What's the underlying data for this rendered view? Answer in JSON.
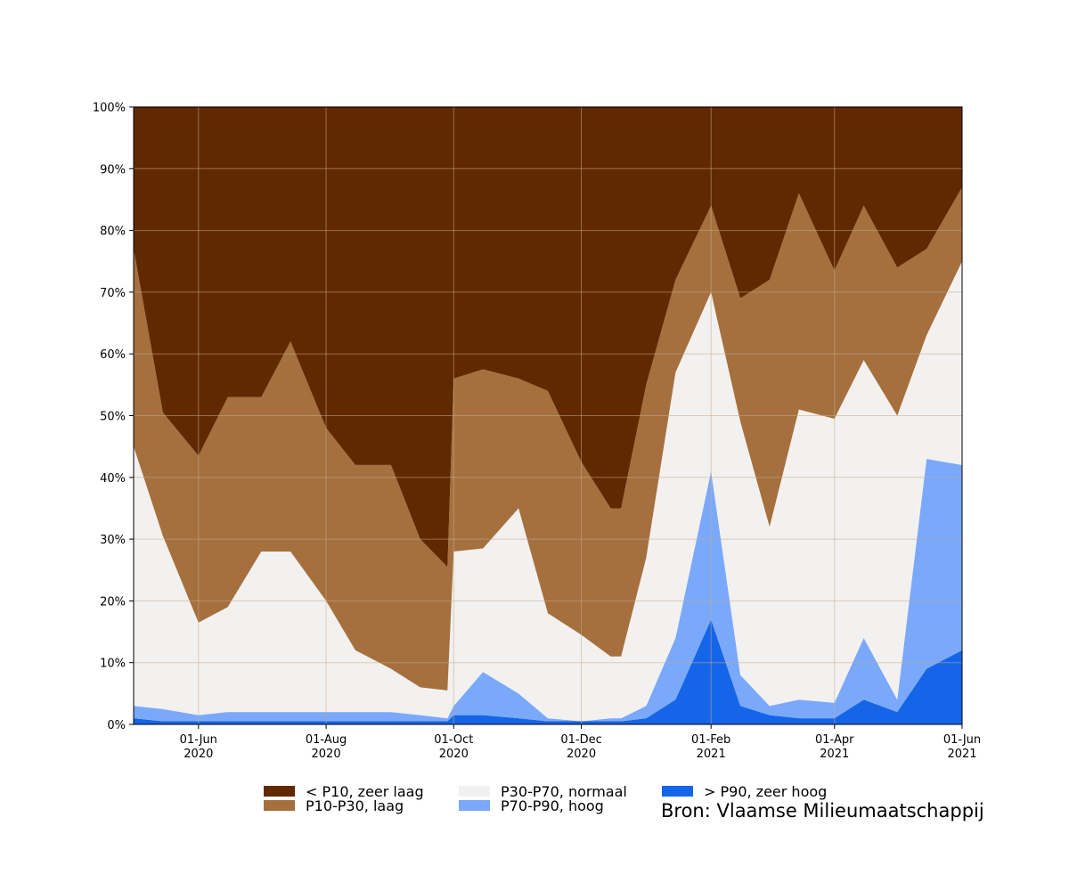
{
  "chart_data": {
    "type": "area",
    "stacked": true,
    "percent_stacked": true,
    "x": [
      "2020-05-01",
      "2020-05-15",
      "2020-06-01",
      "2020-06-15",
      "2020-07-01",
      "2020-07-15",
      "2020-08-01",
      "2020-08-15",
      "2020-09-01",
      "2020-09-15",
      "2020-09-28",
      "2020-10-01",
      "2020-10-15",
      "2020-11-01",
      "2020-11-15",
      "2020-12-01",
      "2020-12-15",
      "2020-12-20",
      "2021-01-01",
      "2021-01-15",
      "2021-02-01",
      "2021-02-15",
      "2021-03-01",
      "2021-03-15",
      "2021-04-01",
      "2021-04-15",
      "2021-05-01",
      "2021-05-15",
      "2021-06-01"
    ],
    "series": [
      {
        "name": "> P90, zeer hoog",
        "color": "#1565e8",
        "values": [
          1,
          0.5,
          0.5,
          0.5,
          0.5,
          0.5,
          0.5,
          0.5,
          0.5,
          0.5,
          0.5,
          1.5,
          1.5,
          1.0,
          0.5,
          0.5,
          0.5,
          0.5,
          1.0,
          4.0,
          17.0,
          3.0,
          1.5,
          1.0,
          1.0,
          4.0,
          2.0,
          9.0,
          12.0
        ]
      },
      {
        "name": "P70-P90, hoog",
        "color": "#7aa9fb",
        "values": [
          2,
          2,
          1,
          1.5,
          1.5,
          1.5,
          1.5,
          1.5,
          1.5,
          1.0,
          0.5,
          1.5,
          7.0,
          4.0,
          0.5,
          0.0,
          0.5,
          0.5,
          2.0,
          10.0,
          24.0,
          5.0,
          1.5,
          3.0,
          2.5,
          10.0,
          2.0,
          34.0,
          30.0
        ]
      },
      {
        "name": "P30-P70, normaal",
        "color": "#f2f1ef",
        "values": [
          42,
          28,
          15,
          17,
          26,
          26,
          18,
          10,
          7,
          4.5,
          4.5,
          25,
          20,
          30,
          17,
          14,
          10,
          10,
          24,
          43,
          29,
          41,
          29,
          47,
          46,
          45,
          46,
          20,
          33
        ]
      },
      {
        "name": "P10-P30, laag",
        "color": "#a5703e",
        "values": [
          32,
          20,
          27,
          34,
          25,
          34,
          28,
          30,
          33,
          24,
          20,
          28,
          29,
          21,
          36,
          28,
          24,
          24,
          28,
          15,
          14,
          20,
          40,
          35,
          24,
          25,
          24,
          14,
          12
        ]
      },
      {
        "name": "< P10, zeer laag",
        "color": "#612900",
        "values": [
          23,
          49.5,
          56.5,
          47,
          47,
          38,
          52,
          58,
          58,
          70,
          74.5,
          44,
          42.5,
          44,
          46,
          57.5,
          65,
          65,
          45,
          28,
          16,
          31,
          28,
          14,
          26.5,
          16,
          26,
          23,
          13
        ]
      }
    ],
    "xticks": [
      {
        "date": "01-Jun",
        "year": "2020"
      },
      {
        "date": "01-Aug",
        "year": "2020"
      },
      {
        "date": "01-Oct",
        "year": "2020"
      },
      {
        "date": "01-Dec",
        "year": "2020"
      },
      {
        "date": "01-Feb",
        "year": "2021"
      },
      {
        "date": "01-Apr",
        "year": "2021"
      },
      {
        "date": "01-Jun",
        "year": "2021"
      }
    ],
    "yticks": [
      "0%",
      "10%",
      "20%",
      "30%",
      "40%",
      "50%",
      "60%",
      "70%",
      "80%",
      "90%",
      "100%"
    ],
    "ylim": [
      0,
      100
    ],
    "xlim": [
      "2020-05-01",
      "2021-06-01"
    ],
    "grid": true,
    "legend_placement": "bottom"
  },
  "legend": {
    "items": [
      {
        "label": "< P10, zeer laag",
        "color": "#612900"
      },
      {
        "label": "P10-P30, laag",
        "color": "#a5703e"
      },
      {
        "label": "P30-P70, normaal",
        "color": "#f2f1ef"
      },
      {
        "label": "P70-P90, hoog",
        "color": "#7aa9fb"
      },
      {
        "label": "> P90, zeer hoog",
        "color": "#1565e8"
      }
    ]
  },
  "source": "Bron: Vlaamse Milieumaatschappij"
}
